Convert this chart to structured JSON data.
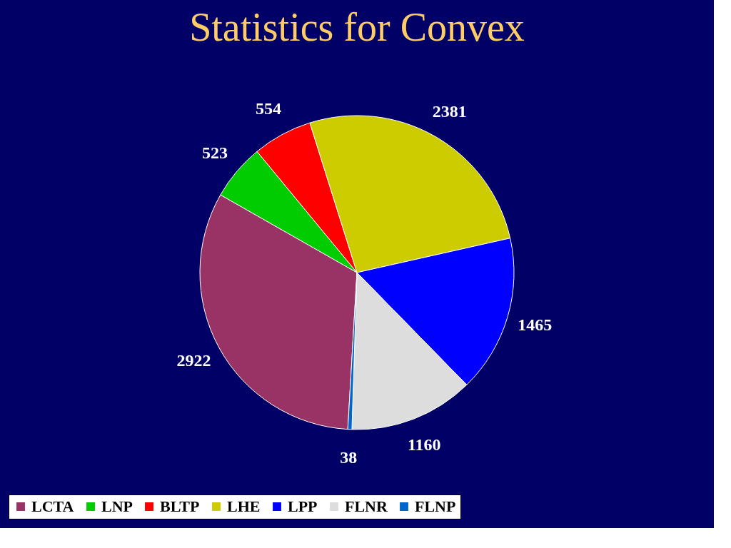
{
  "chart_data": {
    "type": "pie",
    "title": "Statistics for Convex",
    "categories": [
      "LCTA",
      "LNP",
      "BLTP",
      "LHE",
      "LPP",
      "FLNR",
      "FLNP"
    ],
    "values": [
      2922,
      523,
      554,
      2381,
      1465,
      1160,
      38
    ],
    "colors": [
      "#993366",
      "#00cc00",
      "#ff0000",
      "#cccc00",
      "#0000ff",
      "#dddddd",
      "#0066cc"
    ],
    "data_labels": true,
    "legend": "bottom"
  }
}
